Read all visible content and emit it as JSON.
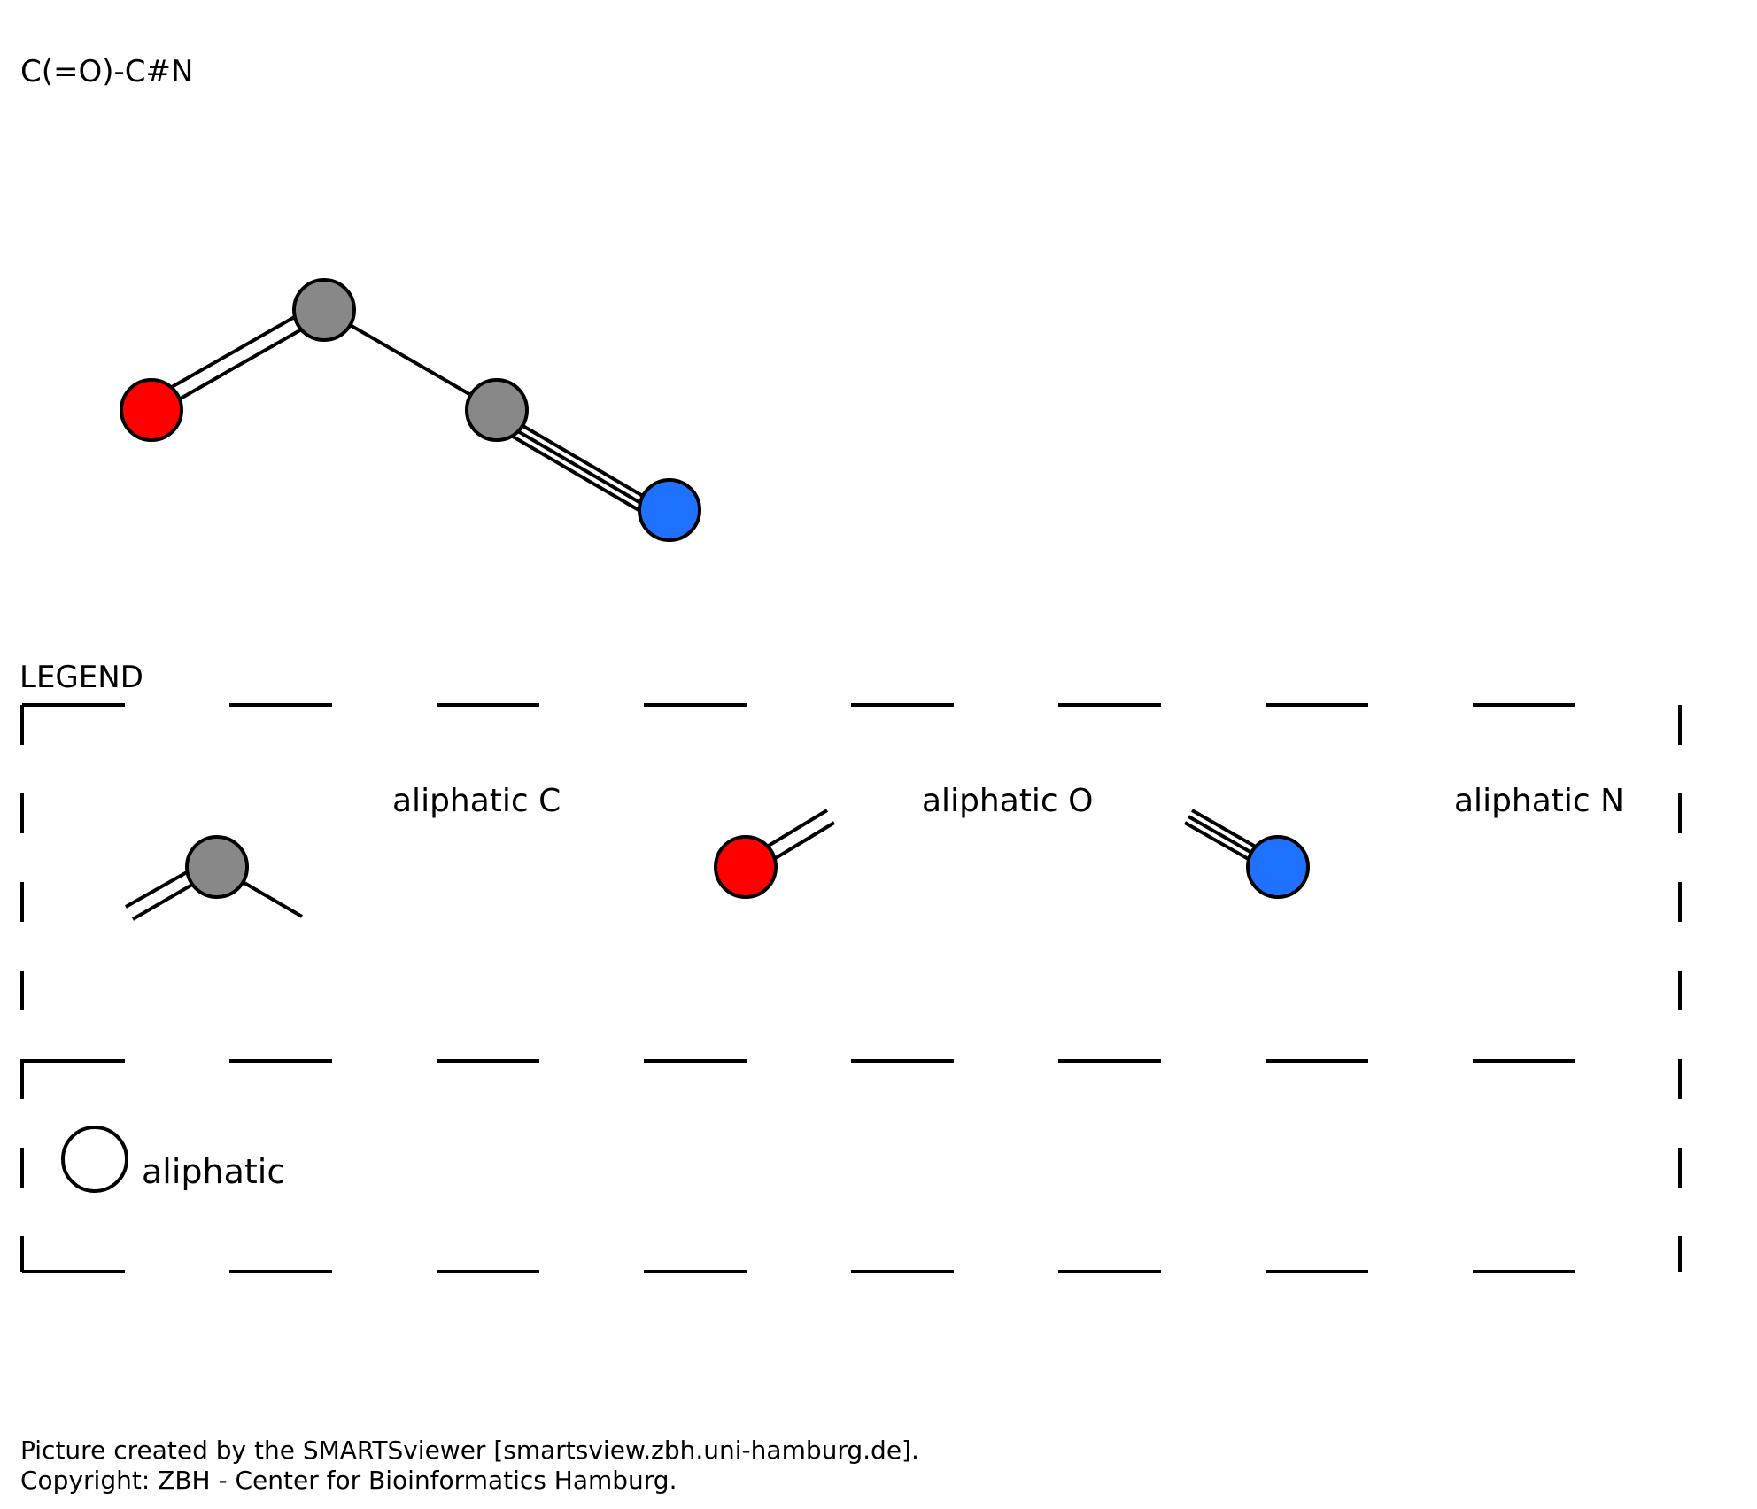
{
  "smarts": "C(=O)-C#N",
  "legend": {
    "title": "LEGEND",
    "entries": [
      {
        "label": "aliphatic C",
        "element": "C",
        "color": "#888888"
      },
      {
        "label": "aliphatic O",
        "element": "O",
        "color": "#ff0000"
      },
      {
        "label": "aliphatic N",
        "element": "N",
        "color": "#1e72ff"
      }
    ],
    "ring_label": "aliphatic"
  },
  "molecule": {
    "atoms": [
      {
        "id": "C1",
        "element": "C",
        "color": "#888888"
      },
      {
        "id": "O1",
        "element": "O",
        "color": "#ff0000"
      },
      {
        "id": "C2",
        "element": "C",
        "color": "#888888"
      },
      {
        "id": "N1",
        "element": "N",
        "color": "#1e72ff"
      }
    ],
    "bonds": [
      {
        "from": "C1",
        "to": "O1",
        "order": 2
      },
      {
        "from": "C1",
        "to": "C2",
        "order": 1
      },
      {
        "from": "C2",
        "to": "N1",
        "order": 3
      }
    ]
  },
  "footer": {
    "line1": "Picture created by the SMARTSviewer [smartsview.zbh.uni-hamburg.de].",
    "line2": "Copyright: ZBH - Center for Bioinformatics Hamburg."
  }
}
